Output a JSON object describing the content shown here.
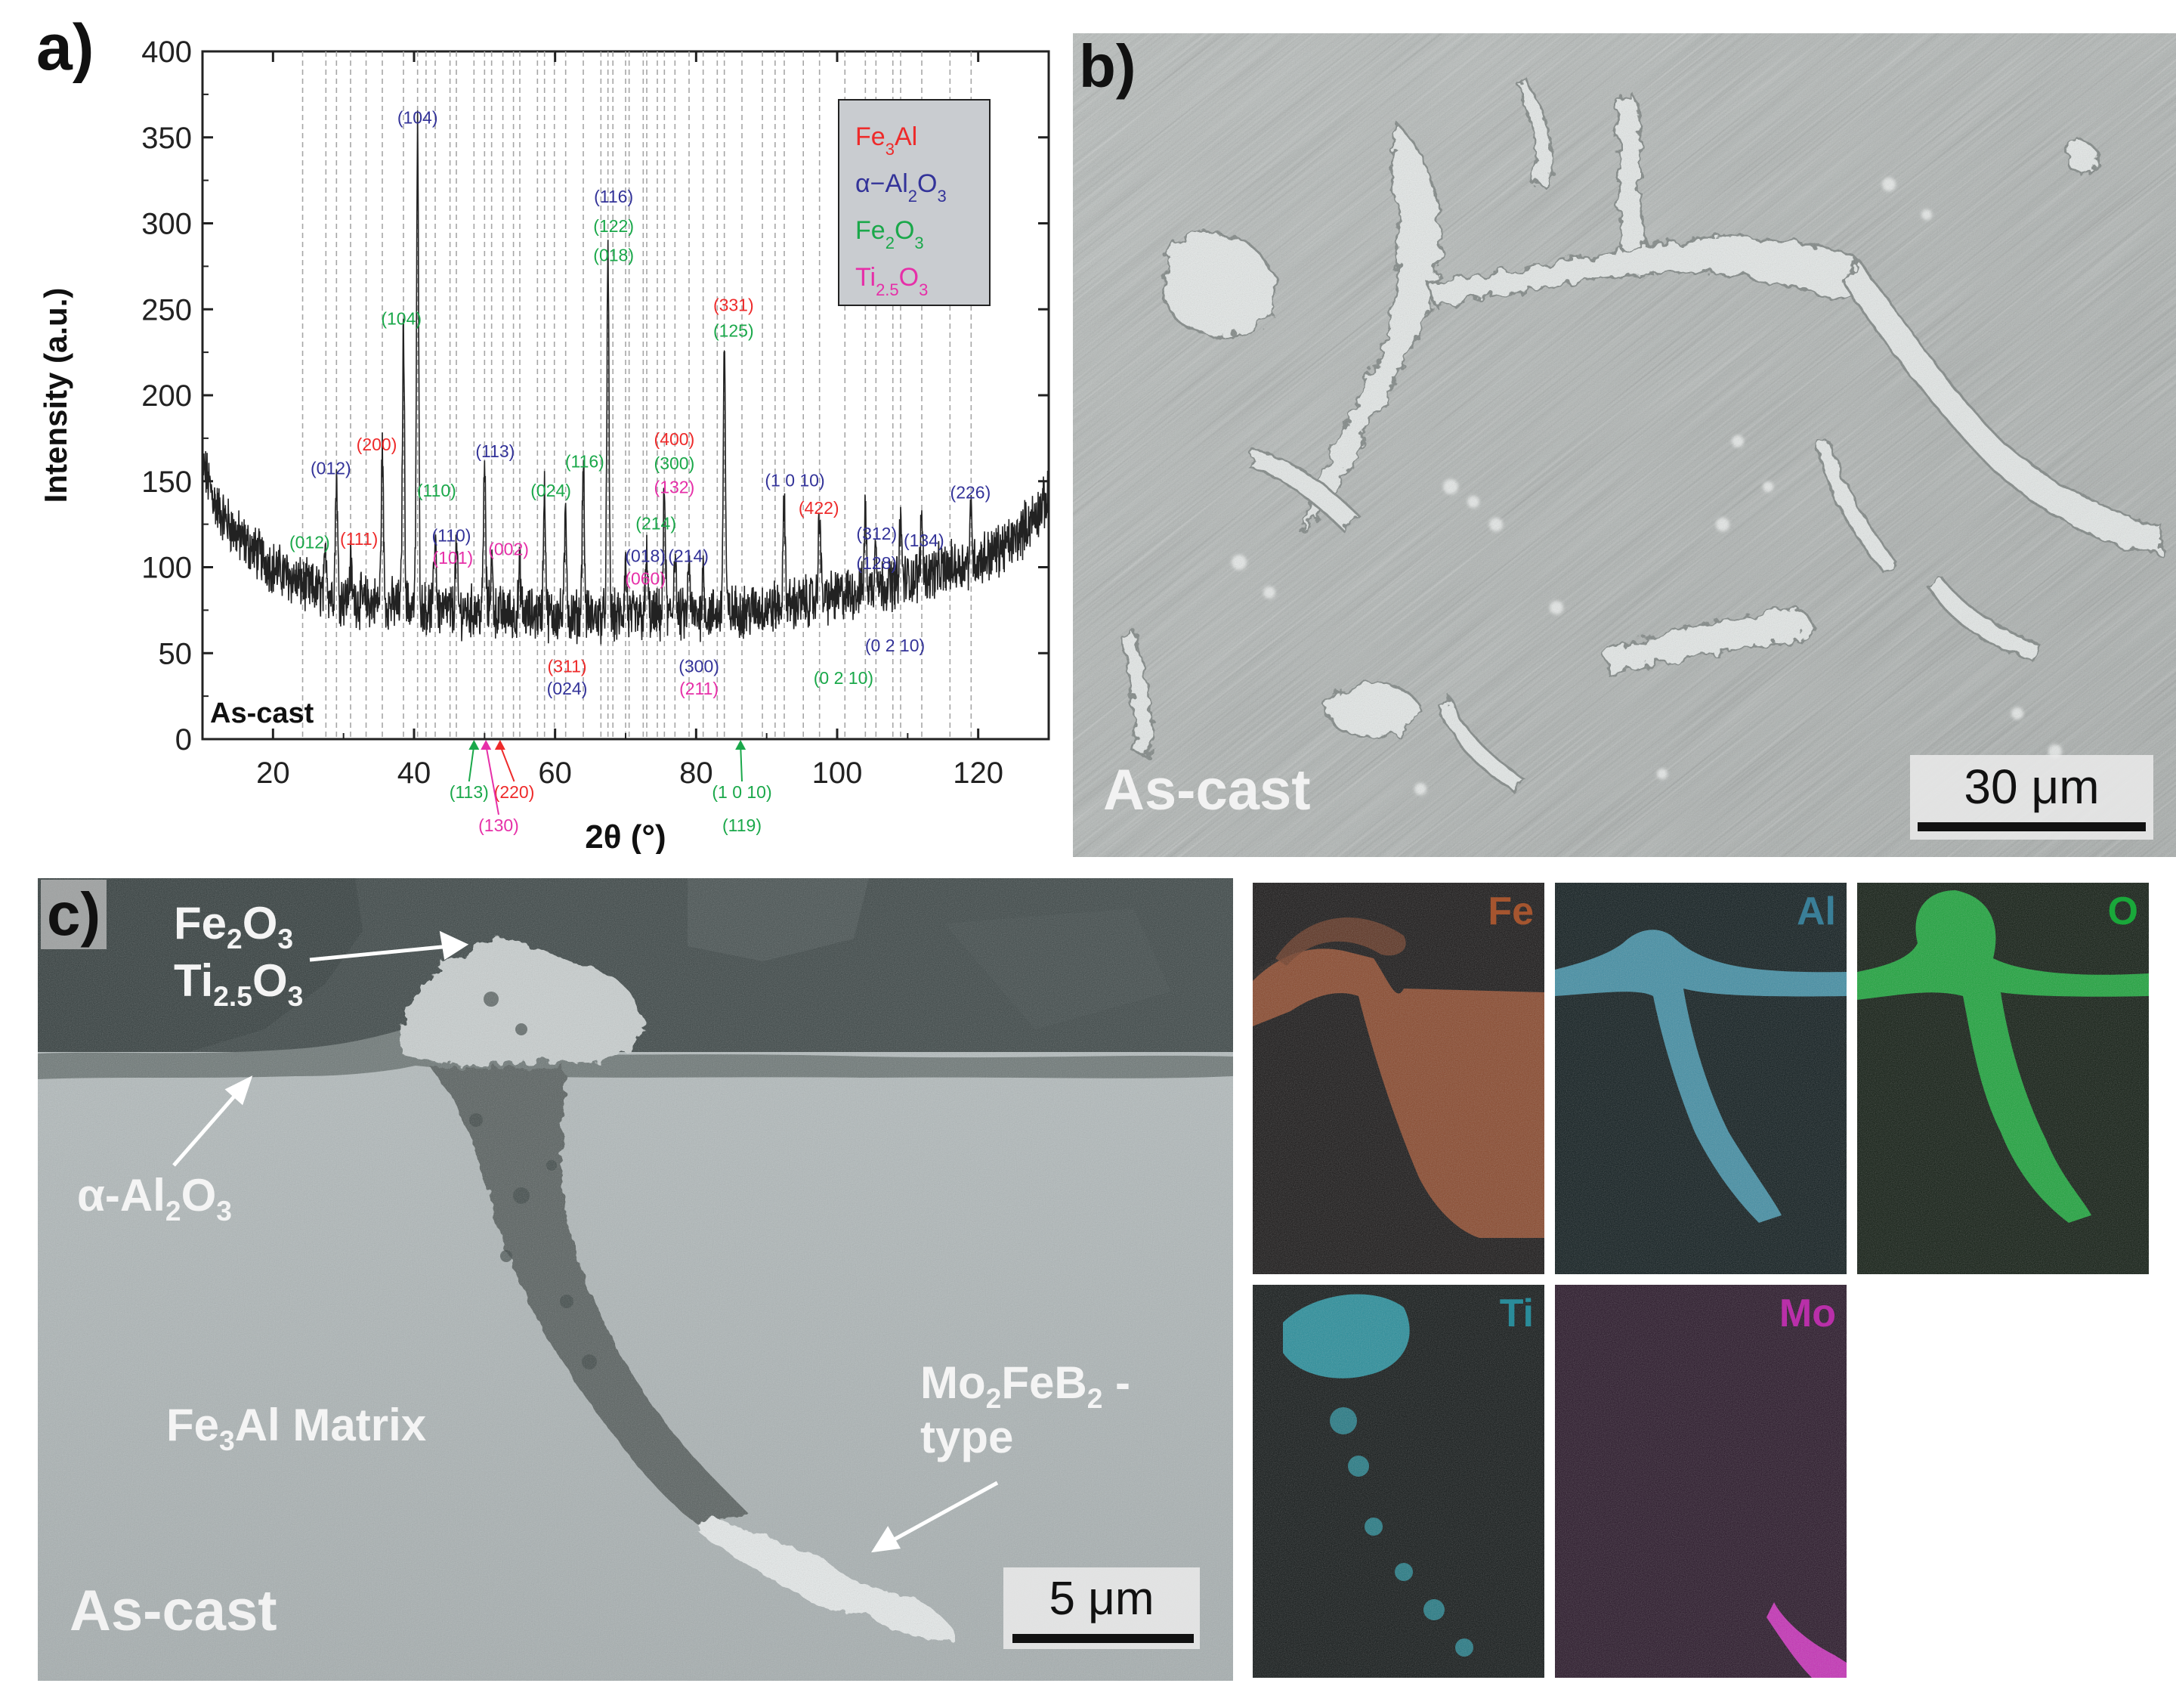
{
  "panel_a": {
    "label": "a)",
    "sample": "As-cast",
    "legend": [
      {
        "parts": [
          "Fe",
          "3",
          "Al"
        ],
        "color": "#ee2a2a"
      },
      {
        "parts": [
          "α−Al",
          "2",
          "O",
          "3"
        ],
        "color": "#333399"
      },
      {
        "parts": [
          "Fe",
          "2",
          "O",
          "3"
        ],
        "color": "#1aa84a"
      },
      {
        "parts": [
          "Ti",
          "2.5",
          "O",
          "3"
        ],
        "color": "#e62fa8"
      }
    ],
    "colors": {
      "Fe3Al": "#ee2a2a",
      "Al2O3": "#333399",
      "Fe2O3": "#1aa84a",
      "Ti2.5O3": "#e62fa8"
    }
  },
  "chart_data": {
    "type": "line",
    "xlabel": "2θ (°)",
    "ylabel": "Intensity (a.u.)",
    "xlim": [
      10,
      130
    ],
    "ylim": [
      0,
      400
    ],
    "xticks": [
      "20",
      "40",
      "60",
      "80",
      "100",
      "120"
    ],
    "yticks": [
      "0",
      "50",
      "100",
      "150",
      "200",
      "250",
      "300",
      "350",
      "400"
    ],
    "grid": false,
    "legend_position": "top-right",
    "series": [
      {
        "color": "#222222",
        "baseline": [
          [
            10,
            160
          ],
          [
            12,
            135
          ],
          [
            15,
            118
          ],
          [
            20,
            100
          ],
          [
            25,
            88
          ],
          [
            30,
            82
          ],
          [
            35,
            79
          ],
          [
            40,
            77
          ],
          [
            45,
            75
          ],
          [
            50,
            74
          ],
          [
            55,
            73
          ],
          [
            60,
            72
          ],
          [
            70,
            71
          ],
          [
            80,
            72
          ],
          [
            90,
            76
          ],
          [
            100,
            83
          ],
          [
            110,
            93
          ],
          [
            120,
            104
          ],
          [
            125,
            115
          ],
          [
            130,
            140
          ]
        ],
        "peaks": [
          [
            27.5,
            25
          ],
          [
            29,
            70
          ],
          [
            31,
            20
          ],
          [
            35.5,
            90
          ],
          [
            38.5,
            160
          ],
          [
            40.5,
            275
          ],
          [
            43,
            45
          ],
          [
            46,
            35
          ],
          [
            50,
            85
          ],
          [
            51,
            30
          ],
          [
            55,
            25
          ],
          [
            58.5,
            75
          ],
          [
            61.5,
            60
          ],
          [
            64,
            90
          ],
          [
            67.5,
            205
          ],
          [
            70,
            30
          ],
          [
            73,
            35
          ],
          [
            75.5,
            72
          ],
          [
            77,
            40
          ],
          [
            79,
            30
          ],
          [
            81,
            25
          ],
          [
            84,
            155
          ],
          [
            92.5,
            60
          ],
          [
            97.5,
            55
          ],
          [
            104,
            45
          ],
          [
            105.5,
            30
          ],
          [
            109,
            35
          ],
          [
            112,
            35
          ],
          [
            119,
            30
          ]
        ]
      }
    ],
    "reference_lines_2theta": [
      24.2,
      27.5,
      29,
      31,
      33.2,
      35.5,
      38.5,
      40.5,
      41.7,
      43,
      45.1,
      46,
      48.5,
      50,
      51,
      52.6,
      54.1,
      55,
      57.5,
      58.5,
      59.9,
      61.5,
      64,
      66.5,
      67.5,
      68.2,
      70,
      70.5,
      72.5,
      73,
      74.5,
      75.5,
      77,
      79,
      81,
      83,
      84,
      86.5,
      89.4,
      91.2,
      92.5,
      95.2,
      97.5,
      101.1,
      104,
      105.5,
      107.9,
      109,
      112,
      116,
      119
    ],
    "annotations": [
      {
        "text": "(104)",
        "x": 40.5,
        "y": 358,
        "phase": "Al2O3"
      },
      {
        "text": "(104)",
        "x": 38.2,
        "y": 241,
        "phase": "Fe2O3"
      },
      {
        "text": "(012)",
        "x": 28.2,
        "y": 154,
        "phase": "Al2O3"
      },
      {
        "text": "(200)",
        "x": 34.7,
        "y": 168,
        "phase": "Fe3Al"
      },
      {
        "text": "(113)",
        "x": 51.5,
        "y": 164,
        "phase": "Al2O3"
      },
      {
        "text": "(110)",
        "x": 43.2,
        "y": 141,
        "phase": "Fe2O3"
      },
      {
        "text": "(012)",
        "x": 25.2,
        "y": 111,
        "phase": "Fe2O3"
      },
      {
        "text": "(111)",
        "x": 32.2,
        "y": 113,
        "phase": "Fe3Al"
      },
      {
        "text": "(110)",
        "x": 45.3,
        "y": 115,
        "phase": "Al2O3"
      },
      {
        "text": "(101)",
        "x": 45.5,
        "y": 102,
        "phase": "Ti2.5O3"
      },
      {
        "text": "(002)",
        "x": 53.4,
        "y": 107,
        "phase": "Ti2.5O3"
      },
      {
        "text": "(024)",
        "x": 59.4,
        "y": 141,
        "phase": "Fe2O3"
      },
      {
        "text": "(116)",
        "x": 64.2,
        "y": 158,
        "phase": "Fe2O3"
      },
      {
        "text": "(311)",
        "x": 61.7,
        "y": 39,
        "phase": "Fe3Al"
      },
      {
        "text": "(024)",
        "x": 61.7,
        "y": 26,
        "phase": "Al2O3"
      },
      {
        "text": "(116)",
        "x": 68.3,
        "y": 312,
        "phase": "Al2O3"
      },
      {
        "text": "(122)",
        "x": 68.3,
        "y": 295,
        "phase": "Fe2O3"
      },
      {
        "text": "(018)",
        "x": 68.3,
        "y": 278,
        "phase": "Fe2O3"
      },
      {
        "text": "(400)",
        "x": 76.9,
        "y": 171,
        "phase": "Fe3Al"
      },
      {
        "text": "(300)",
        "x": 76.9,
        "y": 157,
        "phase": "Fe2O3"
      },
      {
        "text": "(132)",
        "x": 76.9,
        "y": 143,
        "phase": "Ti2.5O3"
      },
      {
        "text": "(214)",
        "x": 74.3,
        "y": 122,
        "phase": "Fe2O3"
      },
      {
        "text": "(018)",
        "x": 72.8,
        "y": 103,
        "phase": "Al2O3"
      },
      {
        "text": "(214)",
        "x": 78.9,
        "y": 103,
        "phase": "Al2O3"
      },
      {
        "text": "(060)",
        "x": 72.8,
        "y": 90,
        "phase": "Ti2.5O3"
      },
      {
        "text": "(300)",
        "x": 80.4,
        "y": 39,
        "phase": "Al2O3"
      },
      {
        "text": "(211)",
        "x": 80.4,
        "y": 26,
        "phase": "Ti2.5O3"
      },
      {
        "text": "(331)",
        "x": 85.3,
        "y": 249,
        "phase": "Fe3Al"
      },
      {
        "text": "(125)",
        "x": 85.3,
        "y": 234,
        "phase": "Fe2O3"
      },
      {
        "text": "(1 0 10)",
        "x": 94.0,
        "y": 147,
        "phase": "Al2O3"
      },
      {
        "text": "(422)",
        "x": 97.4,
        "y": 131,
        "phase": "Fe3Al"
      },
      {
        "text": "(312)",
        "x": 105.6,
        "y": 116,
        "phase": "Al2O3"
      },
      {
        "text": "(134)",
        "x": 112.3,
        "y": 112,
        "phase": "Al2O3"
      },
      {
        "text": "(128)",
        "x": 105.6,
        "y": 99,
        "phase": "Al2O3"
      },
      {
        "text": "(226)",
        "x": 118.9,
        "y": 140,
        "phase": "Al2O3"
      },
      {
        "text": "(0 2 10)",
        "x": 108.2,
        "y": 51,
        "phase": "Al2O3"
      },
      {
        "text": "(0 2 10)",
        "x": 100.9,
        "y": 32,
        "phase": "Fe2O3"
      }
    ],
    "below_axis": [
      {
        "text": "(113)",
        "x": 47.8,
        "row": 1,
        "phase": "Fe2O3",
        "arrow_x": 48.5
      },
      {
        "text": "(220)",
        "x": 54.2,
        "row": 1,
        "phase": "Fe3Al",
        "arrow_x": 52.2
      },
      {
        "text": "(130)",
        "x": 52.0,
        "row": 2,
        "phase": "Ti2.5O3",
        "arrow_x": 50.2
      },
      {
        "text": "(1 0 10)",
        "x": 86.5,
        "row": 1,
        "phase": "Fe2O3",
        "arrow_x": 86.3
      },
      {
        "text": "(119)",
        "x": 86.5,
        "row": 2,
        "phase": "Fe2O3",
        "arrow_x": null
      }
    ]
  },
  "panel_b": {
    "label": "b)",
    "sample": "As-cast",
    "scalebar": "30 μm"
  },
  "panel_c": {
    "label": "c)",
    "sample": "As-cast",
    "scalebar": "5 μm",
    "annotations": {
      "oxide_1": [
        "Fe",
        "2",
        "O",
        "3"
      ],
      "oxide_2": [
        "Ti",
        "2.5",
        "O",
        "3"
      ],
      "alumina": [
        "α-Al",
        "2",
        "O",
        "3"
      ],
      "matrix": [
        "Fe",
        "3",
        "Al Matrix"
      ],
      "boride_1": [
        "Mo",
        "2",
        "FeB",
        "2",
        " -"
      ],
      "boride_2": "type"
    }
  },
  "eds_maps": [
    {
      "element": "Fe",
      "color": "#a5552f"
    },
    {
      "element": "Al",
      "color": "#3a7f98"
    },
    {
      "element": "O",
      "color": "#19a83a"
    },
    {
      "element": "Ti",
      "color": "#2a8c9a"
    },
    {
      "element": "Mo",
      "color": "#b92fa9"
    }
  ]
}
